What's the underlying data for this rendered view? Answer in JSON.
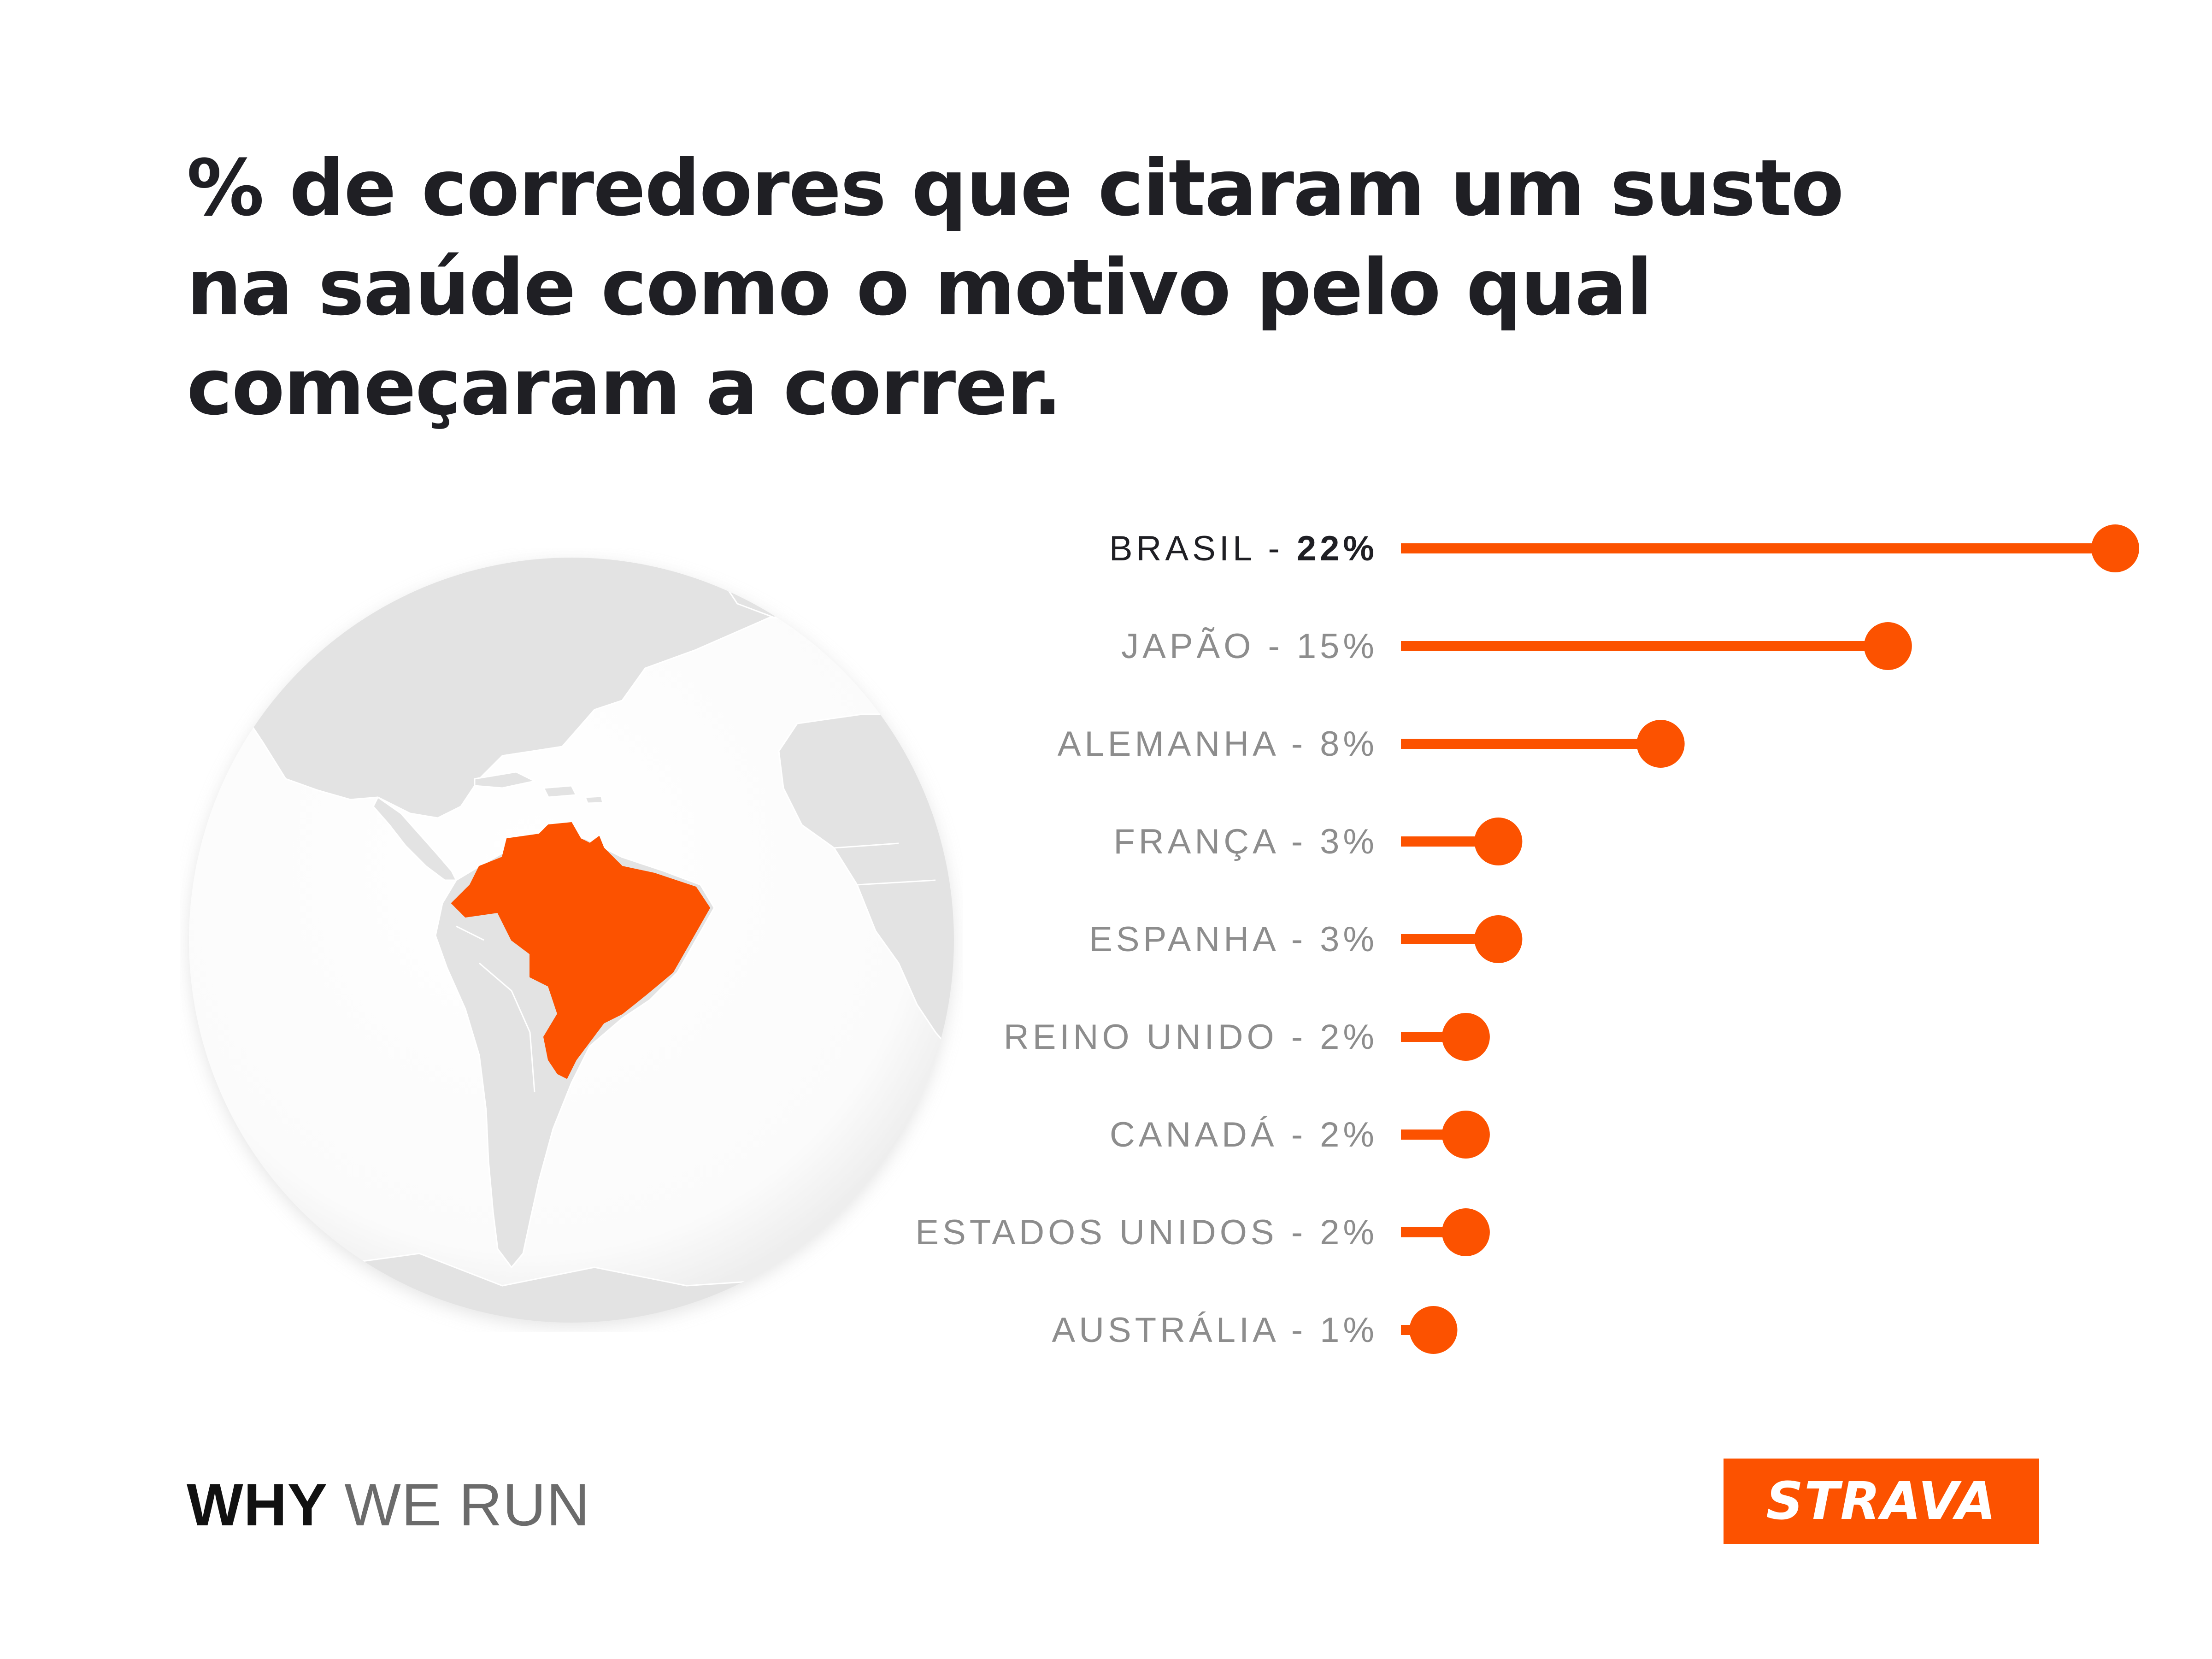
{
  "title_lines": [
    "% de corredores que citaram um susto",
    "na saúde como o motivo pelo qual",
    "começaram a correr."
  ],
  "footer": {
    "brand_strong": "WHY",
    "brand_light": "WE RUN",
    "logo_text": "STRAVA"
  },
  "colors": {
    "accent": "#fc5200",
    "label_gray": "#8d8d8d",
    "highlight_text": "#1f1f24",
    "globe_land": "#e3e3e3"
  },
  "icons": {
    "globe": "globe-brazil-highlight-icon"
  },
  "chart_data": {
    "type": "bar",
    "style": "lollipop",
    "orientation": "horizontal",
    "categories": [
      "BRASIL",
      "JAPÃO",
      "ALEMANHA",
      "FRANÇA",
      "ESPANHA",
      "REINO UNIDO",
      "CANADÁ",
      "ESTADOS UNIDOS",
      "AUSTRÁLIA"
    ],
    "values": [
      22,
      15,
      8,
      3,
      3,
      2,
      2,
      2,
      1
    ],
    "value_labels": [
      "22%",
      "15%",
      "8%",
      "3%",
      "3%",
      "2%",
      "2%",
      "2%",
      "1%"
    ],
    "highlight_index": 0,
    "xlim": [
      0,
      22
    ],
    "grid": false,
    "legend": false
  }
}
